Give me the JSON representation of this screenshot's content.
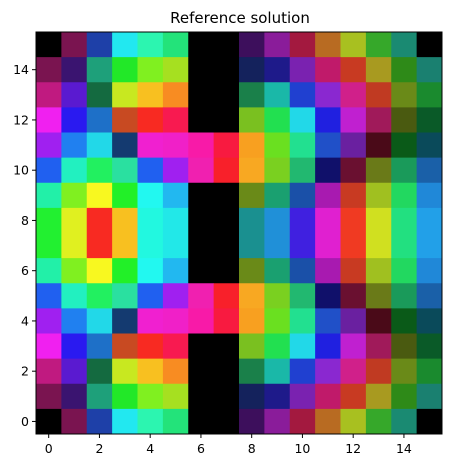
{
  "chart_data": {
    "type": "heatmap",
    "title": "Reference solution",
    "xlabel": "",
    "ylabel": "",
    "xlim": [
      -0.5,
      15.5
    ],
    "ylim": [
      -0.5,
      15.5
    ],
    "grid": false,
    "legend": "none",
    "x_ticks": [
      0,
      2,
      4,
      6,
      8,
      10,
      12,
      14
    ],
    "y_ticks": [
      0,
      2,
      4,
      6,
      8,
      10,
      12,
      14
    ],
    "rows_top_to_bottom": [
      [
        "#000000",
        "#7a1450",
        "#1e40a8",
        "#22e8f0",
        "#2cf5b0",
        "#23e37a",
        "#000000",
        "#000000",
        "#3d0f5c",
        "#8a1c9a",
        "#a3193f",
        "#b86b22",
        "#a8c020",
        "#36a82a",
        "#1a8a72",
        "#000000"
      ],
      [
        "#7a1450",
        "#3a1470",
        "#1ea07a",
        "#22e828",
        "#80f020",
        "#a6e020",
        "#000000",
        "#000000",
        "#14225c",
        "#1e1a8a",
        "#7a22b0",
        "#c01a6a",
        "#c83a22",
        "#a89a20",
        "#2e8a18",
        "#1a8070"
      ],
      [
        "#c01a80",
        "#5a1ad0",
        "#146a40",
        "#c8e820",
        "#f8c020",
        "#f88c22",
        "#000000",
        "#000000",
        "#1a804a",
        "#1ab8a8",
        "#2040d0",
        "#8a28d0",
        "#d0208a",
        "#c03a22",
        "#6a8a18",
        "#1a8a2e"
      ],
      [
        "#f020f0",
        "#2a1af0",
        "#1e70c8",
        "#c84a22",
        "#f82a22",
        "#f81a50",
        "#000000",
        "#000000",
        "#7ac020",
        "#22e050",
        "#22d8e8",
        "#2020e0",
        "#c020d0",
        "#a01a5a",
        "#4a5a10",
        "#0a5a28"
      ],
      [
        "#a020f0",
        "#2080f0",
        "#22d8e8",
        "#143a70",
        "#f020d0",
        "#f020c8",
        "#f81aa8",
        "#f81a40",
        "#f8a020",
        "#6ae020",
        "#22e090",
        "#2050c8",
        "#6a20a0",
        "#4a0a18",
        "#0a5a18",
        "#0a4a5a"
      ],
      [
        "#2060f0",
        "#22f0c0",
        "#22f060",
        "#2ae0a0",
        "#2060f0",
        "#a020f0",
        "#f020b0",
        "#f8202a",
        "#f8a822",
        "#7ad020",
        "#22b870",
        "#10106a",
        "#6a1030",
        "#6a7a18",
        "#1a9a5a",
        "#1a60a8"
      ],
      [
        "#22f0a8",
        "#80f020",
        "#f8f820",
        "#22f028",
        "#22f8f0",
        "#22b8f0",
        "#000000",
        "#000000",
        "#6a8a18",
        "#1aa070",
        "#1a50a8",
        "#a81ab0",
        "#c83a22",
        "#a0c020",
        "#22d860",
        "#2088d8"
      ],
      [
        "#22f030",
        "#e0f020",
        "#f82a22",
        "#f8c020",
        "#22f8e0",
        "#22e8e8",
        "#000000",
        "#000000",
        "#1a9090",
        "#2090d8",
        "#4020e0",
        "#e020d0",
        "#f03a22",
        "#d0e020",
        "#22e080",
        "#22a0e8"
      ],
      [
        "#22f030",
        "#e0f020",
        "#f82a22",
        "#f8c020",
        "#22f8e0",
        "#22e8e8",
        "#000000",
        "#000000",
        "#1a9090",
        "#2090d8",
        "#4020e0",
        "#e020d0",
        "#f03a22",
        "#d0e020",
        "#22e080",
        "#22a0e8"
      ],
      [
        "#22f0a8",
        "#80f020",
        "#f8f820",
        "#22f028",
        "#22f8f0",
        "#22b8f0",
        "#000000",
        "#000000",
        "#6a8a18",
        "#1aa070",
        "#1a50a8",
        "#a81ab0",
        "#c83a22",
        "#a0c020",
        "#22d860",
        "#2088d8"
      ],
      [
        "#2060f0",
        "#22f0c0",
        "#22f060",
        "#2ae0a0",
        "#2060f0",
        "#a020f0",
        "#f020b0",
        "#f8202a",
        "#f8a822",
        "#7ad020",
        "#22b870",
        "#10106a",
        "#6a1030",
        "#6a7a18",
        "#1a9a5a",
        "#1a60a8"
      ],
      [
        "#a020f0",
        "#2080f0",
        "#22d8e8",
        "#143a70",
        "#f020d0",
        "#f020c8",
        "#f81aa8",
        "#f81a40",
        "#f8a020",
        "#6ae020",
        "#22e090",
        "#2050c8",
        "#6a20a0",
        "#4a0a18",
        "#0a5a18",
        "#0a4a5a"
      ],
      [
        "#f020f0",
        "#2a1af0",
        "#1e70c8",
        "#c84a22",
        "#f82a22",
        "#f81a50",
        "#000000",
        "#000000",
        "#7ac020",
        "#22e050",
        "#22d8e8",
        "#2020e0",
        "#c020d0",
        "#a01a5a",
        "#4a5a10",
        "#0a5a28"
      ],
      [
        "#c01a80",
        "#5a1ad0",
        "#146a40",
        "#c8e820",
        "#f8c020",
        "#f88c22",
        "#000000",
        "#000000",
        "#1a804a",
        "#1ab8a8",
        "#2040d0",
        "#8a28d0",
        "#d0208a",
        "#c03a22",
        "#6a8a18",
        "#1a8a2e"
      ],
      [
        "#7a1450",
        "#3a1470",
        "#1ea07a",
        "#22e828",
        "#80f020",
        "#a6e020",
        "#000000",
        "#000000",
        "#14225c",
        "#1e1a8a",
        "#7a22b0",
        "#c01a6a",
        "#c83a22",
        "#a89a20",
        "#2e8a18",
        "#1a8070"
      ],
      [
        "#000000",
        "#7a1450",
        "#1e40a8",
        "#22e8f0",
        "#2cf5b0",
        "#23e37a",
        "#000000",
        "#000000",
        "#3d0f5c",
        "#8a1c9a",
        "#a3193f",
        "#b86b22",
        "#a8c020",
        "#36a82a",
        "#1a8a72",
        "#000000"
      ]
    ]
  }
}
